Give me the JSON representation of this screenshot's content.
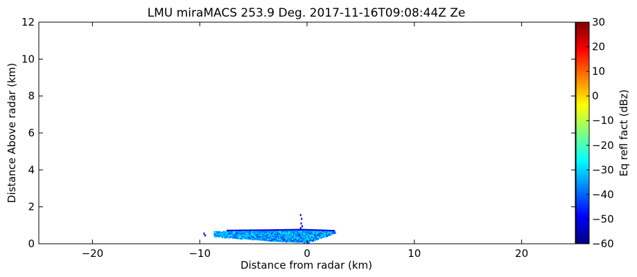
{
  "chart_data": {
    "type": "heatmap",
    "title": "LMU miraMACS 253.9 Deg. 2017-11-16T09:08:44Z  Ze",
    "xlabel": "Distance from radar (km)",
    "ylabel": "Distance Above radar  (km)",
    "xlim": [
      -25,
      25
    ],
    "ylim": [
      0,
      12
    ],
    "x_ticks": [
      -20,
      -10,
      0,
      10,
      20
    ],
    "x_tick_labels": [
      "−20",
      "−10",
      "0",
      "10",
      "20"
    ],
    "y_ticks": [
      0,
      2,
      4,
      6,
      8,
      10,
      12
    ],
    "y_tick_labels": [
      "0",
      "2",
      "4",
      "6",
      "8",
      "10",
      "12"
    ],
    "grid": false,
    "colorbar": {
      "label": "Eq refl fact (dBz)",
      "range": [
        -60,
        30
      ],
      "ticks": [
        -60,
        -50,
        -40,
        -30,
        -20,
        -10,
        0,
        10,
        20,
        30
      ],
      "tick_labels": [
        "−60",
        "−50",
        "−40",
        "−30",
        "−20",
        "−10",
        "0",
        "10",
        "20",
        "30"
      ],
      "colormap": "jet",
      "colors": [
        "#00007f",
        "#0000ff",
        "#007fff",
        "#00ffff",
        "#7fff7f",
        "#ffff00",
        "#ff7f00",
        "#ff0000",
        "#7f0000"
      ]
    },
    "echo_region": {
      "x_range_km": [
        -9.7,
        2.6
      ],
      "height_range_km": [
        0,
        0.8
      ],
      "reflectivity_range_dbz": [
        -45,
        -25
      ],
      "polygon_km": [
        [
          -8.7,
          0.55
        ],
        [
          -7.5,
          0.7
        ],
        [
          -4,
          0.72
        ],
        [
          -0.5,
          0.75
        ],
        [
          2.6,
          0.7
        ],
        [
          2.6,
          0.62
        ],
        [
          0,
          0.05
        ],
        [
          -3,
          0.1
        ],
        [
          -6,
          0.25
        ],
        [
          -8.7,
          0.4
        ]
      ],
      "bands": [
        {
          "dbz": -38,
          "polygon_km": [
            [
              -7.5,
              0.62
            ],
            [
              -2,
              0.66
            ],
            [
              1.5,
              0.66
            ],
            [
              -0.2,
              0.2
            ],
            [
              -4,
              0.2
            ],
            [
              -7,
              0.35
            ]
          ]
        },
        {
          "dbz": -31,
          "polygon_km": [
            [
              -6,
              0.55
            ],
            [
              -2,
              0.6
            ],
            [
              0.5,
              0.6
            ],
            [
              -1,
              0.3
            ],
            [
              -4.5,
              0.3
            ]
          ]
        },
        {
          "dbz": -44,
          "polygon_km": [
            [
              -4,
              0.18
            ],
            [
              0,
              0.08
            ],
            [
              0.5,
              0.22
            ],
            [
              -3,
              0.28
            ]
          ]
        }
      ],
      "cloud_top_km": [
        [
          -7.5,
          0.72
        ],
        [
          -4,
          0.74
        ],
        [
          -0.5,
          0.77
        ],
        [
          2.6,
          0.71
        ]
      ],
      "specks_km": [
        [
          -9.6,
          0.55
        ],
        [
          -9.5,
          0.45
        ],
        [
          -0.6,
          1.55
        ],
        [
          -0.5,
          1.35
        ],
        [
          -0.55,
          1.1
        ],
        [
          -0.45,
          0.95
        ],
        [
          -0.6,
          0.85
        ]
      ]
    }
  }
}
